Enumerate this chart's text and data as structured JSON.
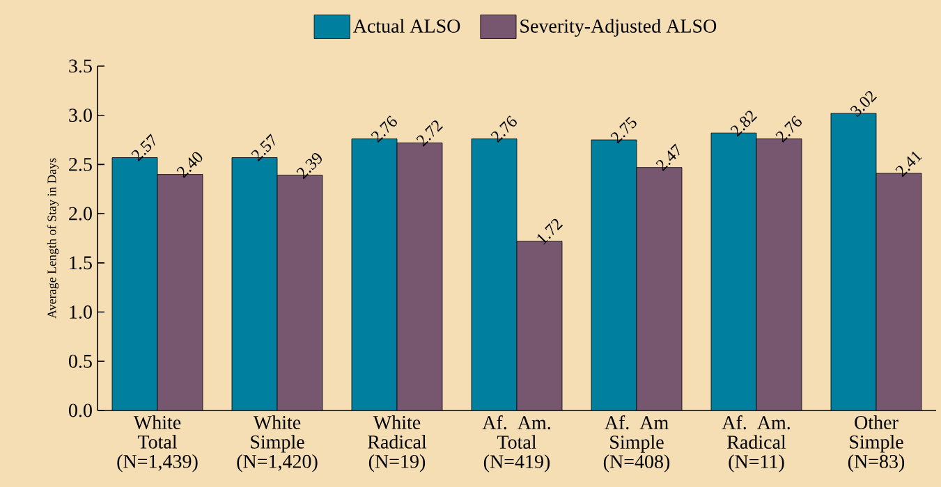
{
  "chart_data": {
    "type": "bar",
    "ylabel": "Average Length of Stay in Days",
    "categories": [
      "White Total (N=1,439)",
      "White Simple (N=1,420)",
      "White Radical (N=19)",
      "Af. Am. Total (N=419)",
      "Af. Am Simple (N=408)",
      "Af. Am. Radical (N=11)",
      "Other Simple (N=83)"
    ],
    "series": [
      {
        "name": "Actual ALSO",
        "color": "#00809e",
        "values": [
          2.57,
          2.57,
          2.76,
          2.76,
          2.75,
          2.82,
          3.02
        ],
        "value_labels": [
          "2.57",
          "2.57",
          "2.76",
          "2.76",
          "2.75",
          "2.82",
          "3.02"
        ]
      },
      {
        "name": "Severity-Adjusted ALSO",
        "color": "#77566f",
        "values": [
          2.4,
          2.39,
          2.72,
          1.72,
          2.47,
          2.76,
          2.41
        ],
        "value_labels": [
          "2.40",
          "2.39",
          "2.72",
          "1.72",
          "2.47",
          "2.76",
          "2.41"
        ]
      }
    ],
    "ylim": [
      0,
      3.5
    ],
    "yticks": [
      {
        "value": 0,
        "label": "0.0"
      },
      {
        "value": 0.5,
        "label": "0.5"
      },
      {
        "value": 1,
        "label": "1.0"
      },
      {
        "value": 1.5,
        "label": "1.5"
      },
      {
        "value": 2,
        "label": "2.0"
      },
      {
        "value": 2.5,
        "label": "2.5"
      },
      {
        "value": 3,
        "label": "3.0"
      },
      {
        "value": 3.5,
        "label": "3.5"
      }
    ],
    "legend": "top",
    "grid": false
  }
}
